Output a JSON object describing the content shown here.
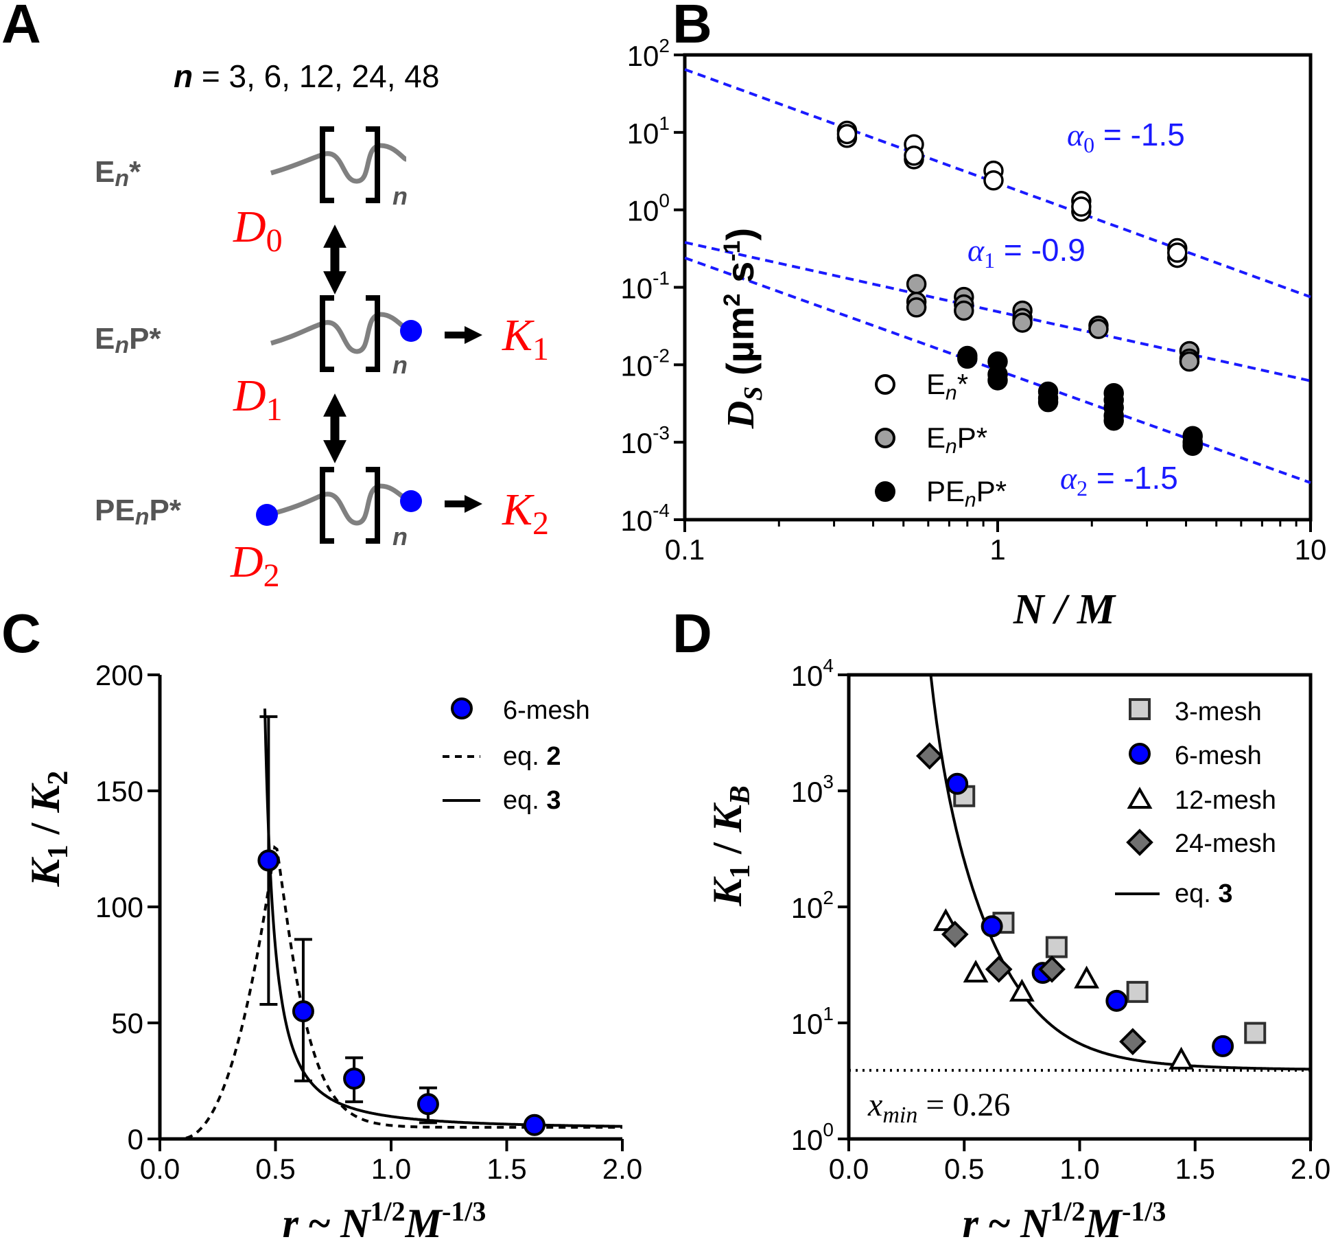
{
  "panel_labels": {
    "A": "A",
    "B": "B",
    "C": "C",
    "D": "D"
  },
  "panel_a": {
    "n_label": "n",
    "n_values": " = 3, 6, 12, 24, 48",
    "species": [
      {
        "name": "En*",
        "parts": [
          "E",
          "n",
          "*"
        ],
        "D": "D",
        "D_sub": "0",
        "K": "",
        "K_sub": ""
      },
      {
        "name": "EnP*",
        "parts": [
          "E",
          "n",
          "P*"
        ],
        "D": "D",
        "D_sub": "1",
        "K": "K",
        "K_sub": "1"
      },
      {
        "name": "PEnP*",
        "parts": [
          "PE",
          "n",
          "P*"
        ],
        "D": "D",
        "D_sub": "2",
        "K": "K",
        "K_sub": "2"
      }
    ],
    "repeat_subscript": "n",
    "colors": {
      "chain": "#808080",
      "bead": "#0000ff",
      "label": "#ff0000",
      "species": "#555555"
    }
  },
  "chart_data": [
    {
      "id": "B",
      "type": "scatter",
      "xscale": "log",
      "yscale": "log",
      "xlim": [
        0.1,
        10
      ],
      "ylim": [
        0.0001,
        100
      ],
      "x_ticks": [
        {
          "v": 0.1,
          "label": "0.1"
        },
        {
          "v": 1,
          "label": "1"
        },
        {
          "v": 10,
          "label": "10"
        }
      ],
      "y_ticks": [
        {
          "v": 100,
          "base": "10",
          "exp": "2"
        },
        {
          "v": 10,
          "base": "10",
          "exp": "1"
        },
        {
          "v": 1,
          "base": "10",
          "exp": "0"
        },
        {
          "v": 0.1,
          "base": "10",
          "exp": "-1"
        },
        {
          "v": 0.01,
          "base": "10",
          "exp": "-2"
        },
        {
          "v": 0.001,
          "base": "10",
          "exp": "-3"
        },
        {
          "v": 0.0001,
          "base": "10",
          "exp": "-4"
        }
      ],
      "xlabel": "N / M",
      "ylabel": {
        "D": "D",
        "sub": "S",
        "units_open": " (µm",
        "sup1": "2",
        "mid": " s",
        "sup2": "-1",
        "close": ")"
      },
      "series": [
        {
          "name": "En*",
          "legend": {
            "a": "E",
            "sub": "n",
            "b": "*"
          },
          "fill": "#ffffff",
          "stroke": "#000000",
          "x": [
            0.33,
            0.33,
            0.33,
            0.54,
            0.54,
            0.54,
            0.97,
            0.97,
            1.85,
            1.85,
            1.85,
            3.75,
            3.75,
            3.75
          ],
          "y": [
            10.5,
            8.5,
            9.5,
            7.0,
            4.5,
            5.0,
            3.2,
            2.4,
            1.3,
            0.95,
            1.1,
            0.32,
            0.24,
            0.28
          ]
        },
        {
          "name": "EnP*",
          "legend": {
            "a": "E",
            "sub": "n",
            "b": "P*"
          },
          "fill": "#a0a0a0",
          "stroke": "#000000",
          "x": [
            0.55,
            0.55,
            0.55,
            0.78,
            0.78,
            0.78,
            1.2,
            1.2,
            1.2,
            2.1,
            2.1,
            4.1,
            4.1,
            4.1
          ],
          "y": [
            0.11,
            0.065,
            0.055,
            0.075,
            0.06,
            0.05,
            0.05,
            0.04,
            0.035,
            0.032,
            0.029,
            0.015,
            0.012,
            0.011
          ]
        },
        {
          "name": "PEnP*",
          "legend": {
            "a": "PE",
            "sub": "n",
            "b": "P*"
          },
          "fill": "#000000",
          "stroke": "#000000",
          "x": [
            0.8,
            0.8,
            1.0,
            1.0,
            1.0,
            1.45,
            1.45,
            1.45,
            2.35,
            2.35,
            2.35,
            2.35,
            2.35,
            4.2,
            4.2,
            4.2
          ],
          "y": [
            0.013,
            0.012,
            0.011,
            0.0075,
            0.0063,
            0.0045,
            0.0037,
            0.0033,
            0.0043,
            0.0035,
            0.0028,
            0.0022,
            0.0019,
            0.0012,
            0.001,
            0.0009
          ]
        }
      ],
      "fits": [
        {
          "alpha_sym": "α",
          "alpha_sub": "0",
          "value": " = -1.5",
          "x": [
            0.1,
            10
          ],
          "y": [
            65,
            0.075
          ]
        },
        {
          "alpha_sym": "α",
          "alpha_sub": "1",
          "value": " = -0.9",
          "x": [
            0.1,
            10
          ],
          "y": [
            0.38,
            0.0062
          ]
        },
        {
          "alpha_sym": "α",
          "alpha_sub": "2",
          "value": " = -1.5",
          "x": [
            0.1,
            10
          ],
          "y": [
            0.24,
            0.0003
          ]
        }
      ],
      "fit_color": "#1a1aff",
      "legend_position": "bottom-left"
    },
    {
      "id": "C",
      "type": "scatter",
      "xlim": [
        0,
        2
      ],
      "ylim": [
        0,
        200
      ],
      "x_ticks": [
        {
          "v": 0,
          "label": "0.0"
        },
        {
          "v": 0.5,
          "label": "0.5"
        },
        {
          "v": 1,
          "label": "1.0"
        },
        {
          "v": 1.5,
          "label": "1.5"
        },
        {
          "v": 2,
          "label": "2.0"
        }
      ],
      "y_ticks": [
        {
          "v": 0,
          "label": "0"
        },
        {
          "v": 50,
          "label": "50"
        },
        {
          "v": 100,
          "label": "100"
        },
        {
          "v": 150,
          "label": "150"
        },
        {
          "v": 200,
          "label": "200"
        }
      ],
      "xlabel": {
        "r": "r",
        "tilde": " ~ ",
        "N": "N",
        "exp1": "1/2",
        "M": "M",
        "exp2": "-1/3"
      },
      "ylabel": {
        "K1": "K",
        "sub1": "1",
        "slash": " / ",
        "K2": "K",
        "sub2": "2"
      },
      "series": [
        {
          "name": "6-mesh",
          "fill": "#0000ff",
          "stroke": "#000000",
          "x": [
            0.47,
            0.62,
            0.84,
            1.16,
            1.62
          ],
          "y": [
            120,
            55,
            26,
            15,
            6
          ],
          "err_low": [
            62,
            30,
            10,
            8,
            0
          ],
          "err_high": [
            62,
            31,
            9,
            7,
            0
          ]
        }
      ],
      "legend": [
        {
          "label": "6-mesh",
          "kind": "marker"
        },
        {
          "label_a": "eq. ",
          "label_b": "2",
          "kind": "dashed"
        },
        {
          "label_a": "eq. ",
          "label_b": "3",
          "kind": "solid"
        }
      ],
      "legend_position": "top-right"
    },
    {
      "id": "D",
      "type": "scatter",
      "yscale": "log",
      "xlim": [
        0,
        2
      ],
      "ylim": [
        1,
        10000
      ],
      "x_ticks": [
        {
          "v": 0,
          "label": "0.0"
        },
        {
          "v": 0.5,
          "label": "0.5"
        },
        {
          "v": 1,
          "label": "1.0"
        },
        {
          "v": 1.5,
          "label": "1.5"
        },
        {
          "v": 2,
          "label": "2.0"
        }
      ],
      "y_ticks": [
        {
          "v": 1,
          "base": "10",
          "exp": "0"
        },
        {
          "v": 10,
          "base": "10",
          "exp": "1"
        },
        {
          "v": 100,
          "base": "10",
          "exp": "2"
        },
        {
          "v": 1000,
          "base": "10",
          "exp": "3"
        },
        {
          "v": 10000,
          "base": "10",
          "exp": "4"
        }
      ],
      "xlabel": {
        "r": "r",
        "tilde": " ~ ",
        "N": "N",
        "exp1": "1/2",
        "M": "M",
        "exp2": "-1/3"
      },
      "ylabel": {
        "K1": "K",
        "sub1": "1",
        "slash": " / ",
        "KB": "K",
        "subB": "B"
      },
      "series": [
        {
          "name": "3-mesh",
          "marker": "square",
          "fill": "#cfcfcf",
          "stroke": "#303030",
          "x": [
            0.5,
            0.67,
            0.9,
            1.25,
            1.76
          ],
          "y": [
            900,
            73,
            45,
            18.5,
            8.2
          ]
        },
        {
          "name": "6-mesh",
          "marker": "circle",
          "fill": "#0000ff",
          "stroke": "#000000",
          "x": [
            0.47,
            0.62,
            0.84,
            1.16,
            1.62
          ],
          "y": [
            1150,
            68,
            27,
            15.5,
            6.3
          ]
        },
        {
          "name": "12-mesh",
          "marker": "triangle",
          "fill": "#ffffff",
          "stroke": "#000000",
          "x": [
            0.42,
            0.55,
            0.75,
            1.03,
            1.44
          ],
          "y": [
            75,
            27,
            18.5,
            24,
            4.8
          ]
        },
        {
          "name": "24-mesh",
          "marker": "diamond",
          "fill": "#707070",
          "stroke": "#000000",
          "x": [
            0.35,
            0.46,
            0.65,
            0.88,
            1.23
          ],
          "y": [
            2000,
            58,
            29,
            29,
            6.9
          ]
        }
      ],
      "legend_eq": {
        "label_a": "eq. ",
        "label_b": "3"
      },
      "xmin_label": {
        "x": "x",
        "sub": "min",
        "value": " = 0.26"
      },
      "asymptote_y": 3.9,
      "legend_position": "top-right"
    }
  ]
}
